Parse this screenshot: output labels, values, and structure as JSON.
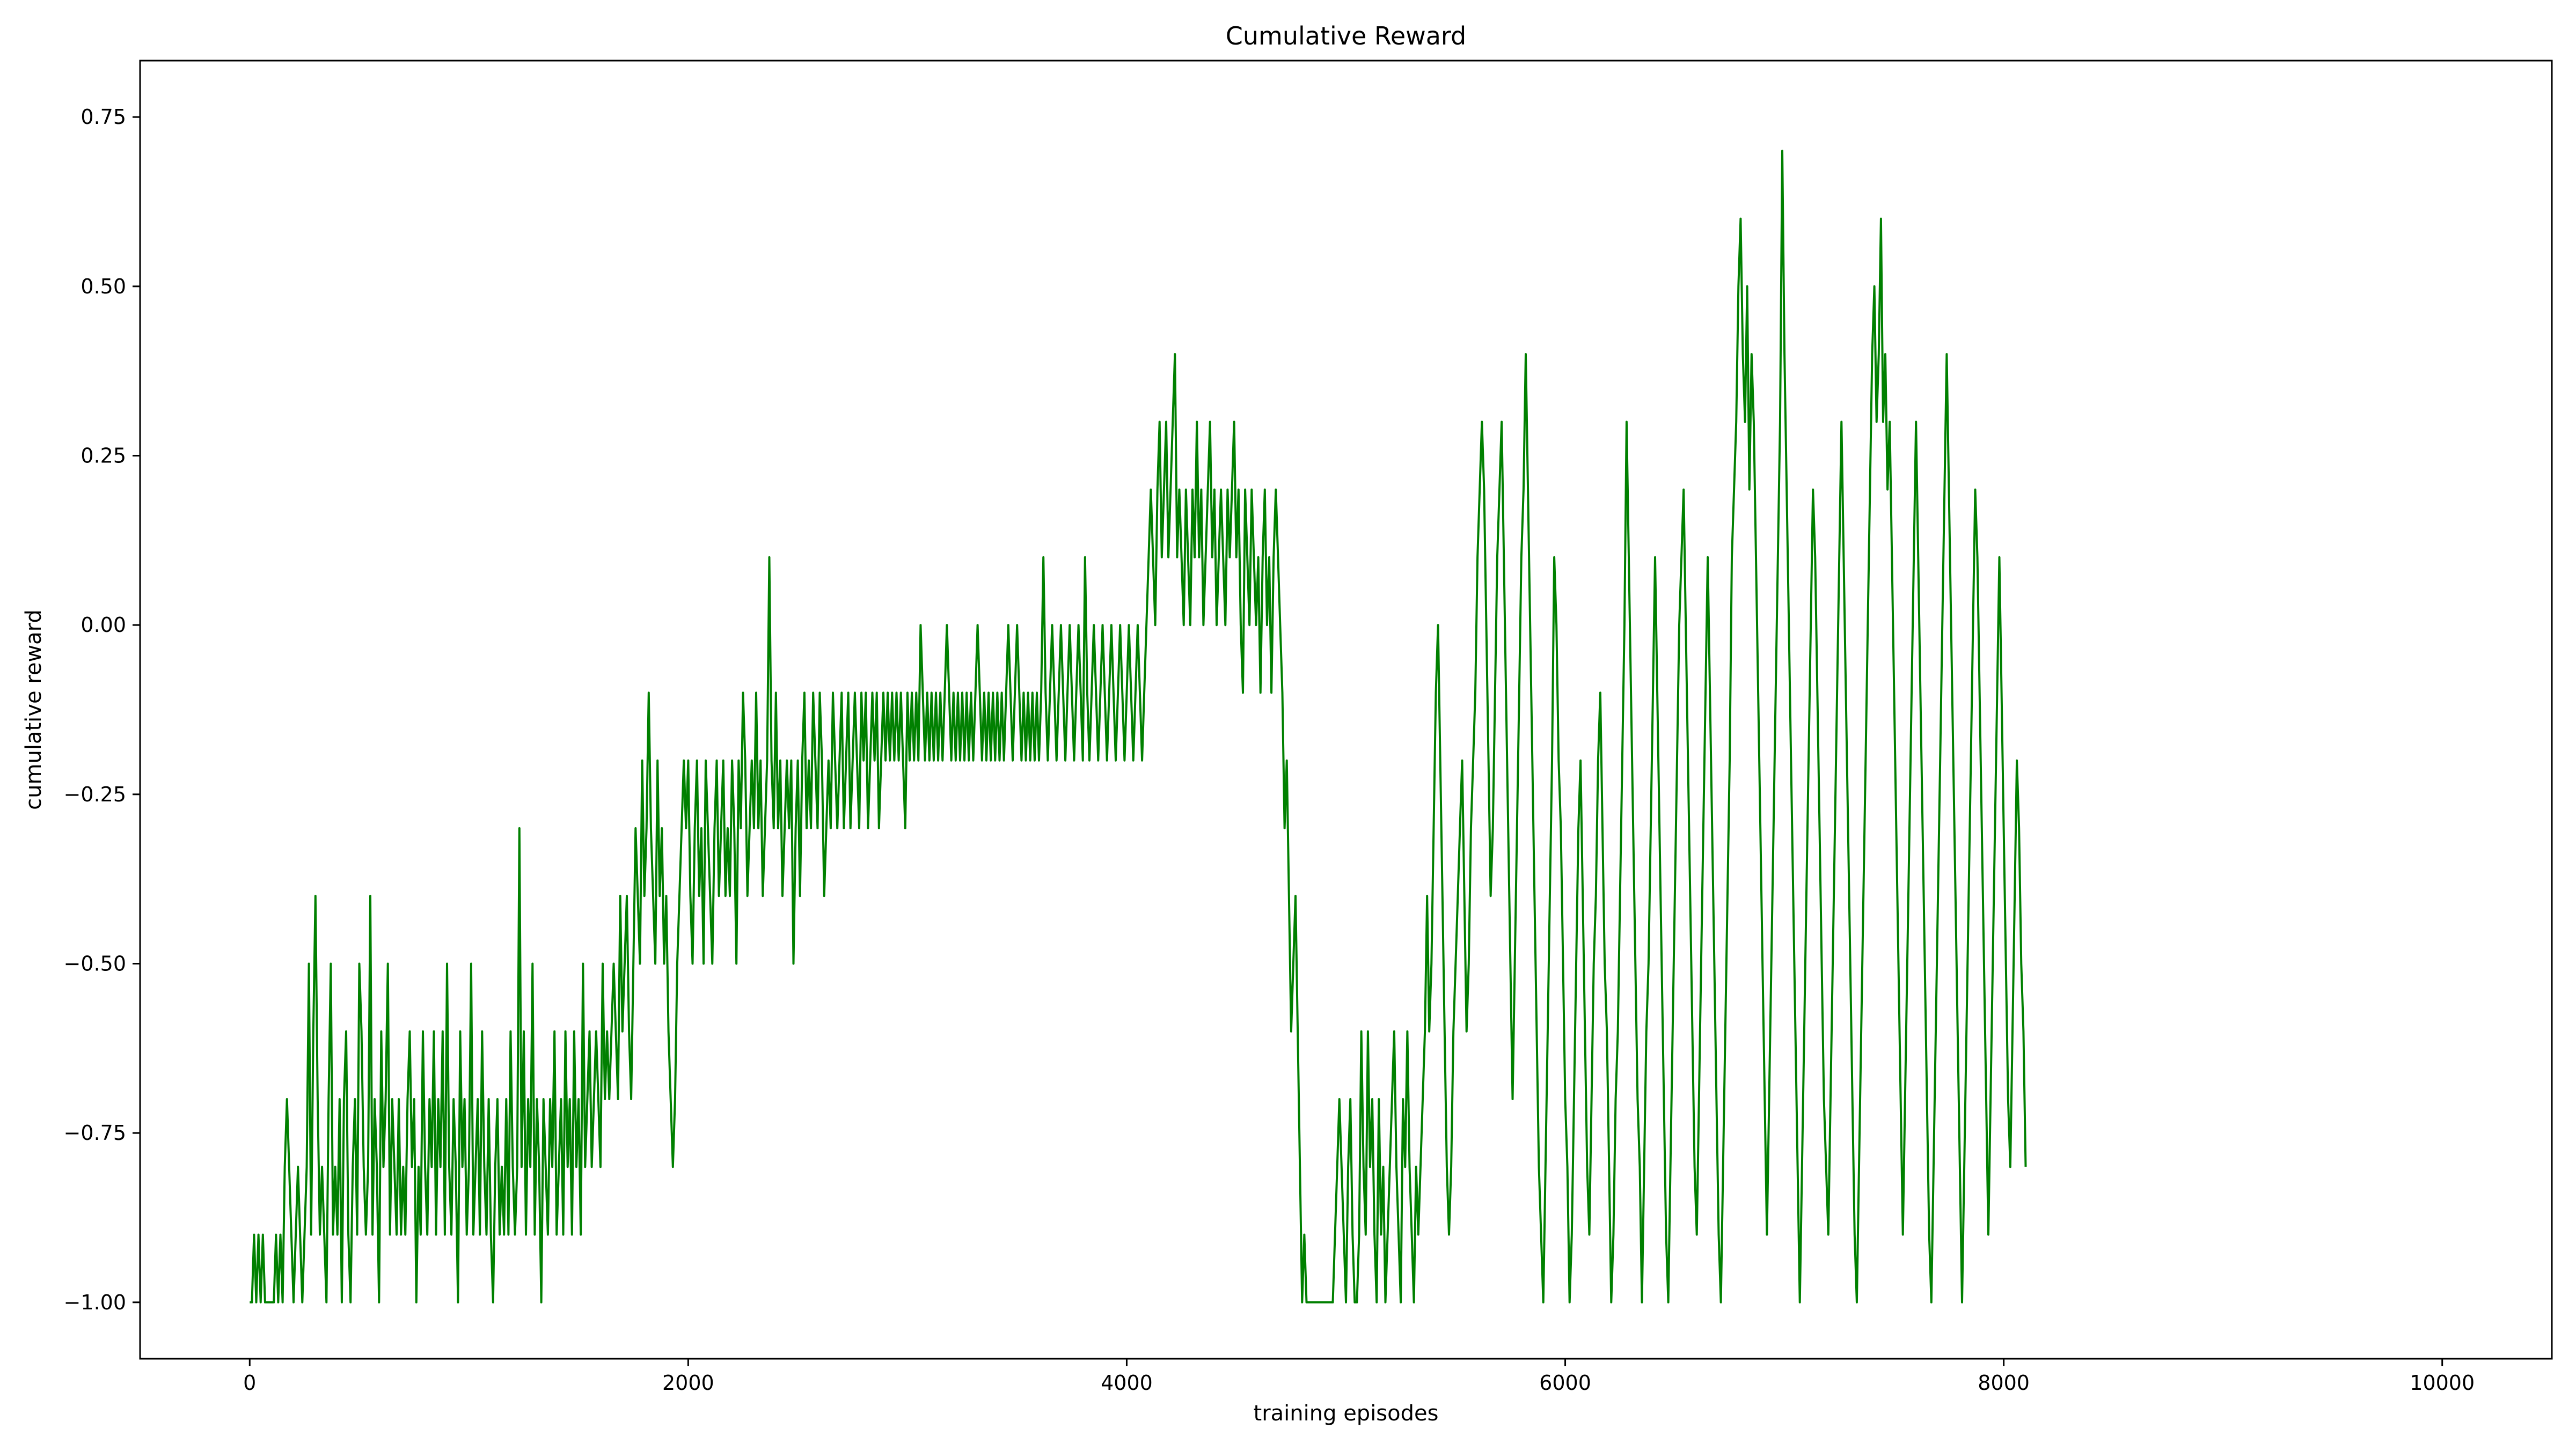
{
  "chart_data": {
    "type": "line",
    "title": "Cumulative Reward",
    "xlabel": "training episodes",
    "ylabel": "cumulative reward",
    "xlim": [
      -500,
      10500
    ],
    "ylim": [
      -1.0833,
      0.8333
    ],
    "xticks": [
      0,
      2000,
      4000,
      6000,
      8000,
      10000
    ],
    "xtick_labels": [
      "0",
      "2000",
      "4000",
      "6000",
      "8000",
      "10000"
    ],
    "yticks": [
      -1.0,
      -0.75,
      -0.5,
      -0.25,
      0.0,
      0.25,
      0.5,
      0.75
    ],
    "ytick_labels": [
      "−1.00",
      "−0.75",
      "−0.50",
      "−0.25",
      "0.00",
      "0.25",
      "0.50",
      "0.75"
    ],
    "grid": false,
    "legend": null,
    "series": [
      {
        "color": "#008000",
        "x_start": 0,
        "x_step": 10,
        "values": [
          -1,
          -1,
          -0.9,
          -1,
          -0.9,
          -1,
          -0.9,
          -1,
          -1,
          -1,
          -1,
          -1,
          -0.9,
          -1,
          -0.9,
          -1,
          -0.8,
          -0.7,
          -0.8,
          -0.9,
          -1,
          -0.9,
          -0.8,
          -0.9,
          -1,
          -0.9,
          -0.8,
          -0.5,
          -0.9,
          -0.6,
          -0.4,
          -0.7,
          -0.9,
          -0.8,
          -0.9,
          -1,
          -0.7,
          -0.5,
          -0.9,
          -0.8,
          -0.9,
          -0.7,
          -1,
          -0.7,
          -0.6,
          -0.9,
          -1,
          -0.8,
          -0.7,
          -0.9,
          -0.5,
          -0.6,
          -0.8,
          -0.9,
          -0.8,
          -0.4,
          -0.9,
          -0.7,
          -0.8,
          -1,
          -0.6,
          -0.8,
          -0.7,
          -0.5,
          -0.9,
          -0.7,
          -0.8,
          -0.9,
          -0.7,
          -0.9,
          -0.8,
          -0.9,
          -0.7,
          -0.6,
          -0.8,
          -0.7,
          -1,
          -0.8,
          -0.9,
          -0.6,
          -0.8,
          -0.9,
          -0.7,
          -0.8,
          -0.6,
          -0.9,
          -0.7,
          -0.8,
          -0.6,
          -0.9,
          -0.5,
          -0.8,
          -0.9,
          -0.7,
          -0.8,
          -1,
          -0.6,
          -0.8,
          -0.7,
          -0.9,
          -0.8,
          -0.5,
          -0.9,
          -0.8,
          -0.7,
          -0.9,
          -0.6,
          -0.8,
          -0.9,
          -0.7,
          -0.9,
          -1,
          -0.8,
          -0.7,
          -0.9,
          -0.8,
          -0.9,
          -0.7,
          -0.9,
          -0.6,
          -0.8,
          -0.9,
          -0.8,
          -0.3,
          -0.8,
          -0.6,
          -0.9,
          -0.7,
          -0.8,
          -0.5,
          -0.9,
          -0.7,
          -0.8,
          -1,
          -0.7,
          -0.8,
          -0.9,
          -0.7,
          -0.8,
          -0.6,
          -0.9,
          -0.8,
          -0.7,
          -0.9,
          -0.6,
          -0.8,
          -0.7,
          -0.9,
          -0.6,
          -0.8,
          -0.7,
          -0.9,
          -0.5,
          -0.8,
          -0.7,
          -0.6,
          -0.8,
          -0.7,
          -0.6,
          -0.7,
          -0.8,
          -0.5,
          -0.7,
          -0.6,
          -0.7,
          -0.6,
          -0.5,
          -0.6,
          -0.7,
          -0.4,
          -0.6,
          -0.5,
          -0.4,
          -0.6,
          -0.7,
          -0.5,
          -0.3,
          -0.4,
          -0.5,
          -0.2,
          -0.4,
          -0.3,
          -0.1,
          -0.3,
          -0.4,
          -0.5,
          -0.2,
          -0.4,
          -0.3,
          -0.5,
          -0.4,
          -0.6,
          -0.7,
          -0.8,
          -0.7,
          -0.5,
          -0.4,
          -0.3,
          -0.2,
          -0.3,
          -0.2,
          -0.4,
          -0.5,
          -0.3,
          -0.2,
          -0.4,
          -0.3,
          -0.5,
          -0.2,
          -0.3,
          -0.4,
          -0.5,
          -0.3,
          -0.2,
          -0.4,
          -0.3,
          -0.2,
          -0.4,
          -0.3,
          -0.4,
          -0.2,
          -0.3,
          -0.5,
          -0.2,
          -0.3,
          -0.1,
          -0.2,
          -0.4,
          -0.3,
          -0.2,
          -0.3,
          -0.1,
          -0.3,
          -0.2,
          -0.4,
          -0.3,
          -0.2,
          0.1,
          -0.2,
          -0.3,
          -0.1,
          -0.3,
          -0.2,
          -0.4,
          -0.3,
          -0.2,
          -0.3,
          -0.2,
          -0.5,
          -0.3,
          -0.2,
          -0.4,
          -0.2,
          -0.1,
          -0.3,
          -0.2,
          -0.3,
          -0.1,
          -0.2,
          -0.3,
          -0.1,
          -0.2,
          -0.4,
          -0.3,
          -0.2,
          -0.3,
          -0.1,
          -0.2,
          -0.3,
          -0.2,
          -0.1,
          -0.3,
          -0.2,
          -0.1,
          -0.3,
          -0.2,
          -0.1,
          -0.2,
          -0.3,
          -0.1,
          -0.2,
          -0.1,
          -0.3,
          -0.2,
          -0.1,
          -0.2,
          -0.1,
          -0.3,
          -0.2,
          -0.1,
          -0.2,
          -0.1,
          -0.2,
          -0.1,
          -0.2,
          -0.1,
          -0.2,
          -0.1,
          -0.2,
          -0.3,
          -0.1,
          -0.2,
          -0.1,
          -0.2,
          -0.1,
          -0.2,
          0,
          -0.1,
          -0.2,
          -0.1,
          -0.2,
          -0.1,
          -0.2,
          -0.1,
          -0.2,
          -0.1,
          -0.2,
          -0.1,
          0,
          -0.1,
          -0.2,
          -0.1,
          -0.2,
          -0.1,
          -0.2,
          -0.1,
          -0.2,
          -0.1,
          -0.2,
          -0.1,
          -0.2,
          -0.1,
          0,
          -0.1,
          -0.2,
          -0.1,
          -0.2,
          -0.1,
          -0.2,
          -0.1,
          -0.2,
          -0.1,
          -0.2,
          -0.1,
          -0.2,
          -0.1,
          0,
          -0.1,
          -0.2,
          -0.1,
          0,
          -0.1,
          -0.2,
          -0.1,
          -0.2,
          -0.1,
          -0.2,
          -0.1,
          -0.2,
          -0.1,
          -0.2,
          -0.1,
          0.1,
          -0.1,
          -0.2,
          -0.1,
          0,
          -0.1,
          -0.2,
          -0.1,
          0,
          -0.1,
          -0.2,
          -0.1,
          0,
          -0.1,
          -0.2,
          -0.1,
          0,
          -0.1,
          -0.2,
          0.1,
          -0.1,
          -0.2,
          -0.1,
          0,
          -0.1,
          -0.2,
          -0.1,
          0,
          -0.1,
          -0.2,
          -0.1,
          0,
          -0.1,
          -0.2,
          -0.1,
          0,
          -0.1,
          -0.2,
          -0.1,
          0,
          -0.1,
          -0.2,
          -0.1,
          0,
          -0.1,
          -0.2,
          -0.1,
          0,
          0.1,
          0.2,
          0.1,
          0,
          0.2,
          0.3,
          0.1,
          0.2,
          0.3,
          0.1,
          0.2,
          0.3,
          0.4,
          0.1,
          0.2,
          0.1,
          0,
          0.2,
          0.1,
          0,
          0.2,
          0.1,
          0.3,
          0.1,
          0.2,
          0,
          0.1,
          0.2,
          0.3,
          0.1,
          0.2,
          0,
          0.1,
          0.2,
          0.1,
          0,
          0.2,
          0.1,
          0.2,
          0.3,
          0.1,
          0.2,
          0,
          -0.1,
          0.2,
          0.1,
          0,
          0.2,
          0.1,
          0,
          0.1,
          -0.1,
          0.1,
          0.2,
          0,
          0.1,
          -0.1,
          0.1,
          0.2,
          0.1,
          0,
          -0.1,
          -0.3,
          -0.2,
          -0.4,
          -0.6,
          -0.5,
          -0.4,
          -0.6,
          -0.8,
          -1,
          -0.9,
          -1,
          -1,
          -1,
          -1,
          -1,
          -1,
          -1,
          -1,
          -1,
          -1,
          -1,
          -1,
          -1,
          -0.9,
          -0.8,
          -0.7,
          -0.8,
          -0.9,
          -1,
          -0.8,
          -0.7,
          -0.9,
          -1,
          -1,
          -0.9,
          -0.6,
          -0.8,
          -0.9,
          -0.6,
          -0.8,
          -0.7,
          -0.9,
          -1,
          -0.7,
          -0.9,
          -0.8,
          -1,
          -0.9,
          -0.8,
          -0.7,
          -0.6,
          -0.8,
          -0.9,
          -1,
          -0.7,
          -0.8,
          -0.6,
          -0.8,
          -0.9,
          -1,
          -0.8,
          -0.9,
          -0.8,
          -0.7,
          -0.6,
          -0.4,
          -0.6,
          -0.5,
          -0.3,
          -0.1,
          0,
          -0.2,
          -0.4,
          -0.6,
          -0.8,
          -0.9,
          -0.8,
          -0.6,
          -0.5,
          -0.4,
          -0.3,
          -0.2,
          -0.4,
          -0.6,
          -0.5,
          -0.3,
          -0.2,
          -0.1,
          0.1,
          0.2,
          0.3,
          0.2,
          0,
          -0.2,
          -0.4,
          -0.3,
          -0.1,
          0.1,
          0.2,
          0.3,
          0.1,
          -0.1,
          -0.3,
          -0.5,
          -0.7,
          -0.5,
          -0.3,
          -0.1,
          0.1,
          0.2,
          0.4,
          0.2,
          0,
          -0.2,
          -0.4,
          -0.6,
          -0.8,
          -0.9,
          -1,
          -0.8,
          -0.6,
          -0.4,
          -0.2,
          0.1,
          0,
          -0.2,
          -0.3,
          -0.5,
          -0.7,
          -0.8,
          -1,
          -0.9,
          -0.7,
          -0.5,
          -0.3,
          -0.2,
          -0.4,
          -0.6,
          -0.8,
          -0.9,
          -0.7,
          -0.5,
          -0.4,
          -0.2,
          -0.1,
          -0.3,
          -0.5,
          -0.6,
          -0.8,
          -1,
          -0.9,
          -0.7,
          -0.6,
          -0.4,
          -0.2,
          0,
          0.3,
          0.1,
          -0.1,
          -0.3,
          -0.5,
          -0.7,
          -0.8,
          -1,
          -0.8,
          -0.6,
          -0.5,
          -0.3,
          -0.1,
          0.1,
          -0.1,
          -0.3,
          -0.5,
          -0.7,
          -0.9,
          -1,
          -0.8,
          -0.6,
          -0.4,
          -0.2,
          0,
          0.1,
          0.2,
          0,
          -0.2,
          -0.4,
          -0.6,
          -0.8,
          -0.9,
          -0.7,
          -0.5,
          -0.3,
          -0.1,
          0.1,
          -0.1,
          -0.3,
          -0.5,
          -0.7,
          -0.9,
          -1,
          -0.8,
          -0.6,
          -0.4,
          -0.2,
          0.1,
          0.2,
          0.3,
          0.5,
          0.6,
          0.4,
          0.3,
          0.5,
          0.2,
          0.4,
          0.3,
          0.1,
          -0.1,
          -0.3,
          -0.5,
          -0.7,
          -0.9,
          -0.7,
          -0.5,
          -0.3,
          -0.1,
          0.1,
          0.3,
          0.7,
          0.4,
          0.2,
          0,
          -0.2,
          -0.4,
          -0.6,
          -0.8,
          -1,
          -0.8,
          -0.6,
          -0.4,
          -0.2,
          0,
          0.2,
          0.1,
          -0.1,
          -0.3,
          -0.5,
          -0.7,
          -0.8,
          -0.9,
          -0.7,
          -0.5,
          -0.3,
          -0.1,
          0.1,
          0.3,
          0.1,
          -0.1,
          -0.3,
          -0.5,
          -0.7,
          -0.9,
          -1,
          -0.8,
          -0.6,
          -0.4,
          -0.2,
          0,
          0.2,
          0.4,
          0.5,
          0.3,
          0.4,
          0.6,
          0.3,
          0.4,
          0.2,
          0.3,
          0.1,
          -0.1,
          -0.3,
          -0.5,
          -0.7,
          -0.9,
          -0.7,
          -0.5,
          -0.3,
          -0.1,
          0.1,
          0.3,
          0.1,
          -0.1,
          -0.3,
          -0.5,
          -0.7,
          -0.9,
          -1,
          -0.8,
          -0.6,
          -0.4,
          -0.2,
          0,
          0.2,
          0.4,
          0.2,
          0,
          -0.2,
          -0.4,
          -0.6,
          -0.8,
          -1,
          -0.8,
          -0.6,
          -0.4,
          -0.2,
          0,
          0.2,
          0.1,
          -0.1,
          -0.3,
          -0.5,
          -0.7,
          -0.9,
          -0.7,
          -0.5,
          -0.3,
          -0.1,
          0.1,
          -0.1,
          -0.3,
          -0.5,
          -0.7,
          -0.8,
          -0.6,
          -0.4,
          -0.2,
          -0.3,
          -0.5,
          -0.6,
          -0.8
        ]
      }
    ]
  }
}
